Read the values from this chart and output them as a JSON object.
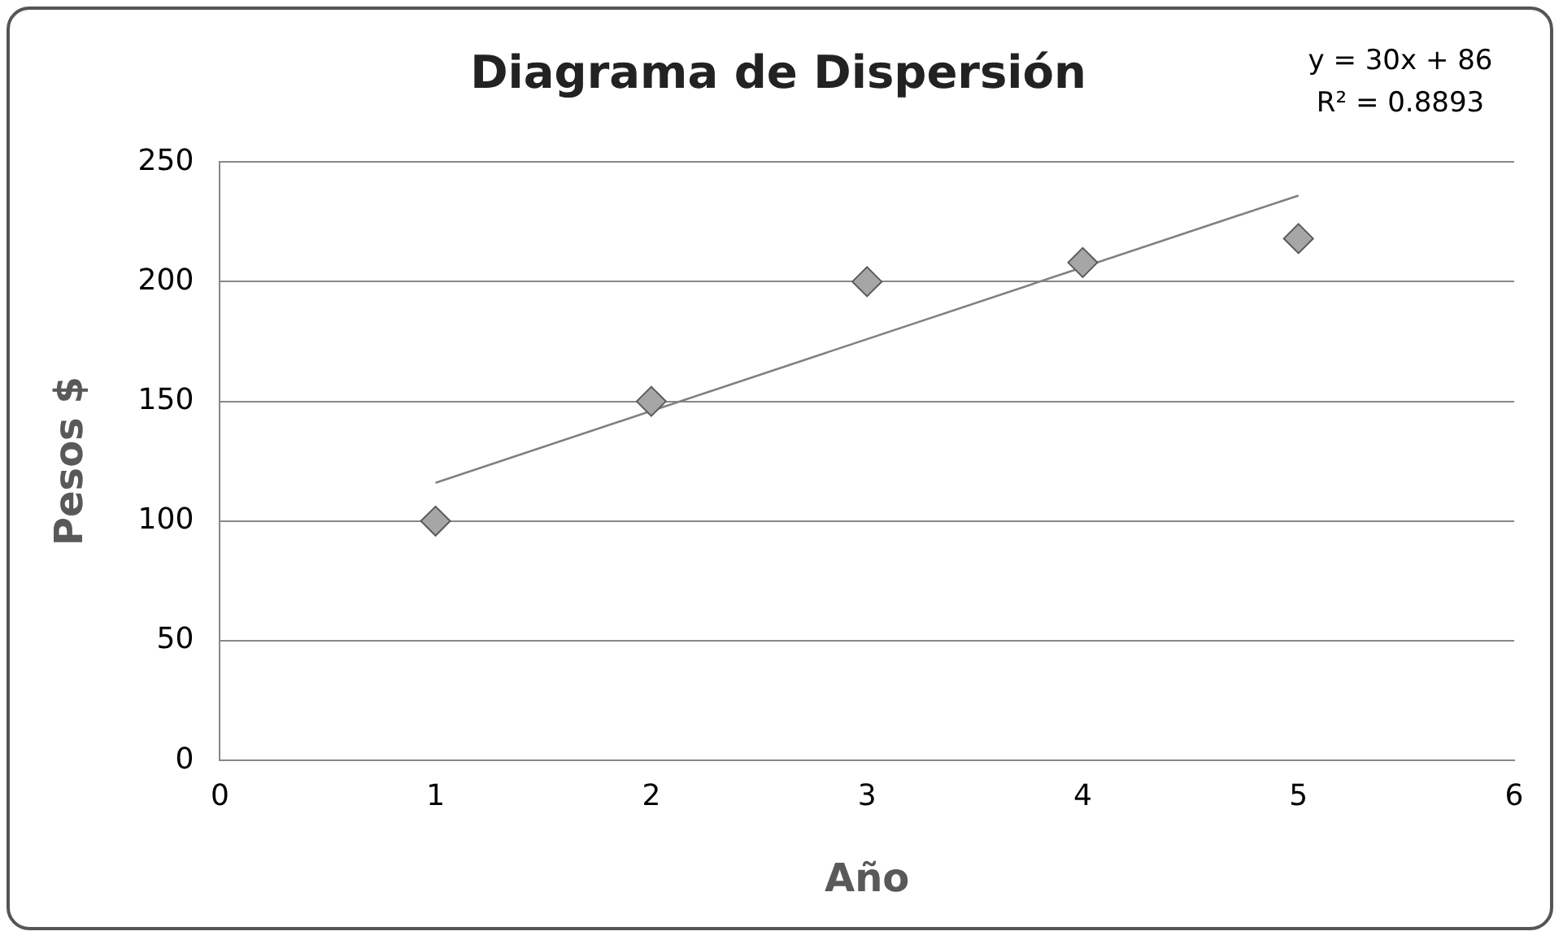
{
  "chart_data": {
    "type": "scatter",
    "title": "Diagrama de Dispersión",
    "xlabel": "Año",
    "ylabel": "Pesos $",
    "annotations": [
      "y = 30x + 86",
      "R² = 0.8893"
    ],
    "series": [
      {
        "color": "#a6a6a6",
        "x": [
          1,
          2,
          3,
          4,
          5
        ],
        "values": [
          100,
          150,
          200,
          208,
          218
        ]
      },
      {
        "type": "line",
        "color": "#808080",
        "x": [
          1,
          5
        ],
        "values": [
          116,
          236
        ],
        "marker": "none"
      }
    ],
    "xlim": [
      0,
      6
    ],
    "xticks": [
      0,
      1,
      2,
      3,
      4,
      5,
      6
    ],
    "ylim": [
      0,
      250
    ],
    "yticks": [
      0,
      50,
      100,
      150,
      200,
      250
    ],
    "grid": "y",
    "legend": false,
    "marker": "diamond"
  }
}
